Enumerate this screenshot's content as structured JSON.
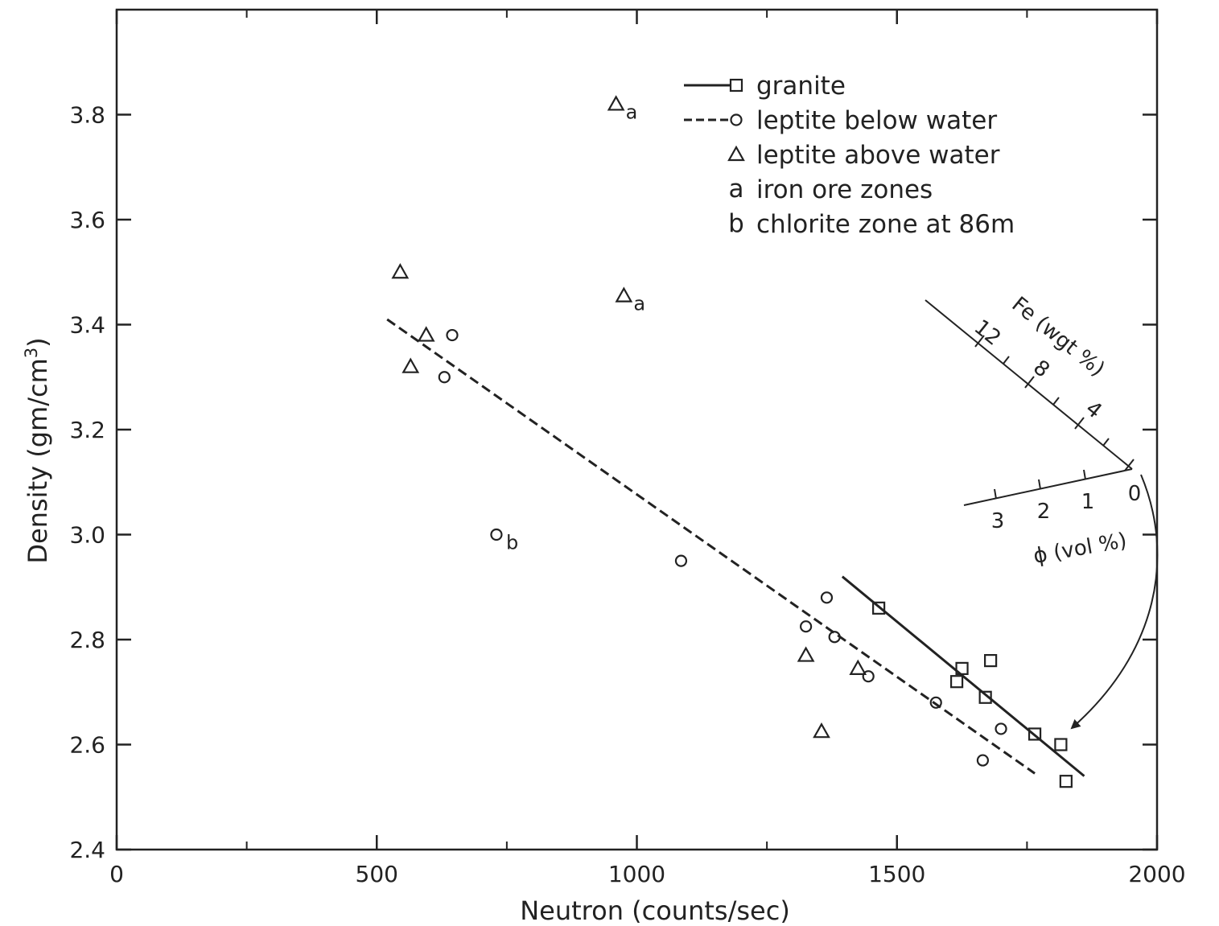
{
  "chart_data": {
    "type": "scatter",
    "title": "",
    "xlabel": "Neutron (counts/sec)",
    "ylabel": "Density (gm/cm",
    "ylabel_superscript": "3",
    "ylabel_suffix": ")",
    "xlim": [
      0,
      2000
    ],
    "ylim": [
      2.4,
      4.0
    ],
    "x_ticks": [
      "0",
      "500",
      "1000",
      "1500",
      "2000"
    ],
    "y_ticks": [
      "2.4",
      "2.6",
      "2.8",
      "3.0",
      "3.2",
      "3.4",
      "3.6",
      "3.8"
    ],
    "grid": false,
    "legend_position": "top-right",
    "legend": [
      {
        "symbol": "square",
        "line": "solid",
        "text": "granite"
      },
      {
        "symbol": "circle",
        "line": "dashed",
        "text": "leptite below water"
      },
      {
        "symbol": "triangle",
        "line": "none",
        "text": "leptite above water"
      },
      {
        "symbol": "letter",
        "letter": "a",
        "line": "none",
        "text": "iron ore zones"
      },
      {
        "symbol": "letter",
        "letter": "b",
        "line": "none",
        "text": "chlorite zone at 86m"
      }
    ],
    "series": [
      {
        "name": "granite",
        "marker": "square",
        "points": [
          {
            "x": 1465,
            "y": 2.86
          },
          {
            "x": 1625,
            "y": 2.745
          },
          {
            "x": 1615,
            "y": 2.72
          },
          {
            "x": 1680,
            "y": 2.76
          },
          {
            "x": 1670,
            "y": 2.69
          },
          {
            "x": 1765,
            "y": 2.62
          },
          {
            "x": 1815,
            "y": 2.6
          },
          {
            "x": 1825,
            "y": 2.53
          }
        ],
        "fit": {
          "style": "solid",
          "from": [
            1395,
            2.92
          ],
          "to": [
            1860,
            2.54
          ]
        }
      },
      {
        "name": "leptite below water",
        "marker": "circle",
        "points": [
          {
            "x": 645,
            "y": 3.38
          },
          {
            "x": 630,
            "y": 3.3
          },
          {
            "x": 1085,
            "y": 2.95
          },
          {
            "x": 1365,
            "y": 2.88
          },
          {
            "x": 1325,
            "y": 2.825
          },
          {
            "x": 1380,
            "y": 2.805
          },
          {
            "x": 1445,
            "y": 2.73
          },
          {
            "x": 1575,
            "y": 2.68
          },
          {
            "x": 1700,
            "y": 2.63
          },
          {
            "x": 1665,
            "y": 2.57
          },
          {
            "x": 730,
            "y": 3.0,
            "label": "b"
          }
        ],
        "fit": {
          "style": "dashed",
          "from": [
            520,
            3.41
          ],
          "to": [
            1765,
            2.545
          ]
        }
      },
      {
        "name": "leptite above water",
        "marker": "triangle",
        "points": [
          {
            "x": 545,
            "y": 3.5
          },
          {
            "x": 595,
            "y": 3.38
          },
          {
            "x": 565,
            "y": 3.32
          },
          {
            "x": 1325,
            "y": 2.77
          },
          {
            "x": 1425,
            "y": 2.745
          },
          {
            "x": 1355,
            "y": 2.625
          },
          {
            "x": 960,
            "y": 3.82,
            "label": "a"
          },
          {
            "x": 975,
            "y": 3.455,
            "label": "a"
          }
        ]
      }
    ],
    "nomogram": {
      "fe_label": "Fe (wgt %)",
      "fe_ticks": [
        "12",
        "8",
        "4"
      ],
      "phi_label": "ϕ (vol %)",
      "phi_ticks": [
        "3",
        "2",
        "1"
      ],
      "origin_label": "0"
    }
  }
}
